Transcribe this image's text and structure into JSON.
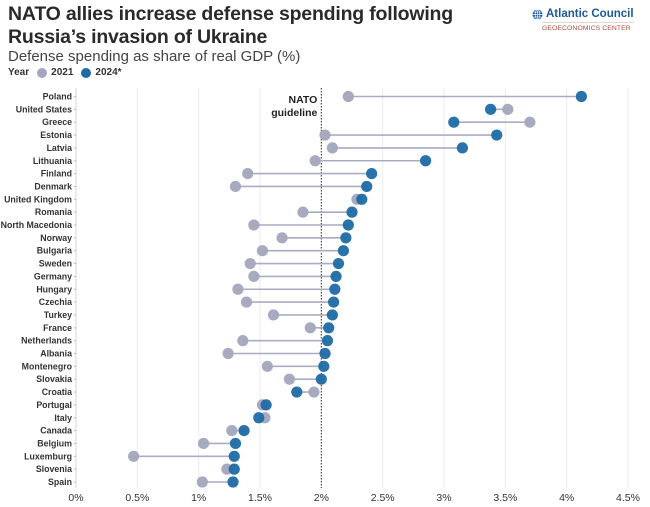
{
  "header": {
    "title": "NATO allies increase defense spending following Russia’s invasion of Ukraine",
    "subtitle": "Defense spending as share of real GDP (%)",
    "legend_title": "Year",
    "brand_name": "Atlantic Council",
    "brand_sub": "GEOECONOMICS CENTER",
    "brand_icon": "globe-icon"
  },
  "colors": {
    "series_2021": "#a3a6bd",
    "series_2024": "#1d6aa5",
    "connector": "#a9acc2",
    "gridline": "#ececec",
    "guideline": "#444444",
    "brand_blue": "#1c5a96",
    "brand_red": "#b34a3a"
  },
  "chart_data": {
    "type": "dumbbell",
    "title": "NATO allies increase defense spending following Russia’s invasion of Ukraine",
    "subtitle": "Defense spending as share of real GDP (%)",
    "xlabel": "",
    "ylabel": "",
    "xlim": [
      0,
      4.5
    ],
    "x_ticks": [
      0,
      0.5,
      1,
      1.5,
      2,
      2.5,
      3,
      3.5,
      4,
      4.5
    ],
    "x_tick_labels": [
      "0%",
      "0.5%",
      "1%",
      "1.5%",
      "2%",
      "2.5%",
      "3%",
      "3.5%",
      "4%",
      "4.5%"
    ],
    "grid": true,
    "legend": {
      "title": "Year",
      "placement": "top-left",
      "entries": [
        "2021",
        "2024*"
      ]
    },
    "reference_line": {
      "value": 2,
      "label_line1": "NATO",
      "label_line2": "guideline",
      "style": "dotted"
    },
    "categories": [
      "Poland",
      "United States",
      "Greece",
      "Estonia",
      "Latvia",
      "Lithuania",
      "Finland",
      "Denmark",
      "United Kingdom",
      "Romania",
      "North Macedonia",
      "Norway",
      "Bulgaria",
      "Sweden",
      "Germany",
      "Hungary",
      "Czechia",
      "Turkey",
      "France",
      "Netherlands",
      "Albania",
      "Montenegro",
      "Slovakia",
      "Croatia",
      "Portugal",
      "Italy",
      "Canada",
      "Belgium",
      "Luxemburg",
      "Slovenia",
      "Spain"
    ],
    "series": [
      {
        "name": "2021",
        "values": [
          2.22,
          3.52,
          3.7,
          2.03,
          2.09,
          1.95,
          1.4,
          1.3,
          2.29,
          1.85,
          1.45,
          1.68,
          1.52,
          1.42,
          1.45,
          1.32,
          1.39,
          1.61,
          1.91,
          1.36,
          1.24,
          1.56,
          1.74,
          1.94,
          1.52,
          1.54,
          1.27,
          1.04,
          0.47,
          1.23,
          1.03
        ]
      },
      {
        "name": "2024*",
        "values": [
          4.12,
          3.38,
          3.08,
          3.43,
          3.15,
          2.85,
          2.41,
          2.37,
          2.33,
          2.25,
          2.22,
          2.2,
          2.18,
          2.14,
          2.12,
          2.11,
          2.1,
          2.09,
          2.06,
          2.05,
          2.03,
          2.02,
          2.0,
          1.8,
          1.55,
          1.49,
          1.37,
          1.3,
          1.29,
          1.29,
          1.28
        ]
      }
    ]
  }
}
